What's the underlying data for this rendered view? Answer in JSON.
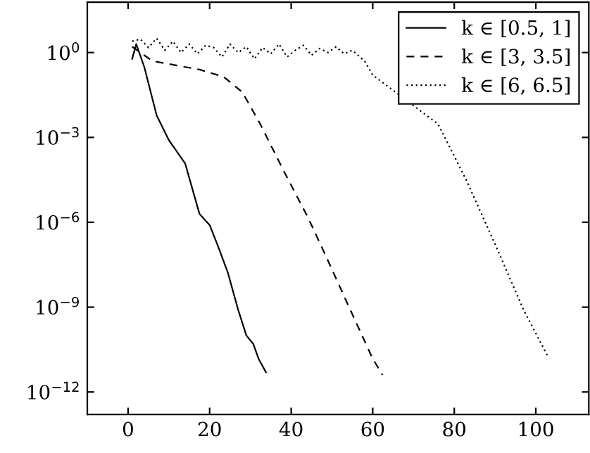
{
  "chart_data": {
    "type": "line",
    "log": "y",
    "legend": "top right",
    "marker": "none",
    "grid": false,
    "xlim": [
      -10,
      113
    ],
    "ylim": [
      1.6e-13,
      60
    ],
    "xticks": [
      0,
      20,
      40,
      60,
      80,
      100
    ],
    "yticks": [
      {
        "value": 1e-12,
        "label": "10$^{−12}$"
      },
      {
        "value": 1e-09,
        "label": "10$^{−9}$"
      },
      {
        "value": 1e-06,
        "label": "10$^{−6}$"
      },
      {
        "value": 0.001,
        "label": "10$^{−3}$"
      },
      {
        "value": 1,
        "label": "10$^{0}$"
      }
    ],
    "series": [
      {
        "name": "k ∈ [0.5, 1]",
        "color": "#000000",
        "line_style": "solid",
        "x": [
          1,
          2,
          4,
          7,
          10,
          14,
          17.5,
          20,
          22,
          24.5,
          27,
          29,
          30.7,
          32,
          33.8
        ],
        "values": [
          0.6,
          2,
          0.3,
          0.006,
          0.0008,
          0.00012,
          2e-06,
          8e-07,
          1.5e-07,
          1.6e-08,
          8e-10,
          1e-10,
          5e-11,
          1.5e-11,
          5e-12
        ]
      },
      {
        "name": "k ∈ [3, 3.5]",
        "color": "#000000",
        "line_style": "dashed",
        "x": [
          1,
          6,
          12,
          17.5,
          23.4,
          28,
          32.4,
          38.3,
          44,
          48.6,
          54.5,
          60,
          62.4
        ],
        "values": [
          1.6,
          0.5,
          0.35,
          0.25,
          0.14,
          0.04,
          0.003,
          6e-05,
          1.6e-06,
          6e-08,
          8e-10,
          1.5e-11,
          4e-12
        ]
      },
      {
        "name": "k ∈ [6, 6.5]",
        "color": "#000000",
        "line_style": "dotted",
        "x": [
          1,
          3,
          5,
          7,
          9,
          11,
          13,
          15,
          17,
          19,
          21,
          23,
          25,
          27,
          29,
          31,
          33,
          35,
          37,
          39,
          41,
          43,
          45,
          47,
          49,
          51,
          53,
          55,
          58,
          60,
          76,
          83,
          91,
          97,
          102.8
        ],
        "values": [
          2.5,
          3,
          1.5,
          3.2,
          1.2,
          2.5,
          1,
          2,
          0.9,
          1.8,
          1.5,
          0.7,
          2,
          1,
          1.6,
          0.6,
          1.5,
          0.9,
          2,
          0.7,
          1.2,
          1.8,
          0.8,
          1.4,
          1,
          1.6,
          0.9,
          1.2,
          0.5,
          0.16,
          0.003,
          3e-05,
          8e-08,
          8e-10,
          2e-11
        ]
      }
    ]
  }
}
